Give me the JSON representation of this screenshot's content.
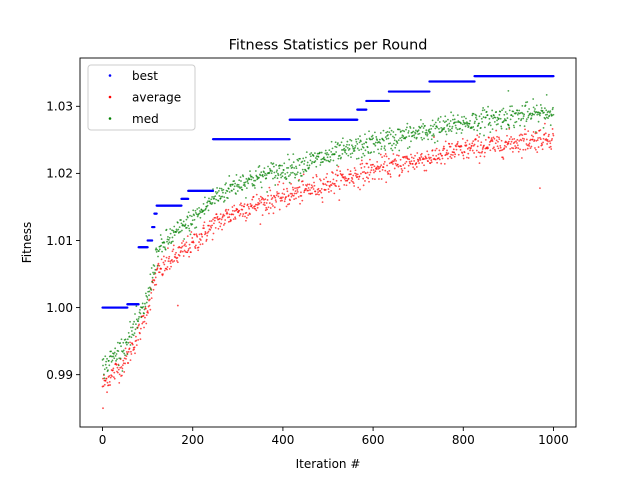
{
  "chart_data": {
    "type": "scatter",
    "title": "Fitness Statistics per Round",
    "xlabel": "Iteration #",
    "ylabel": "Fitness",
    "xlim": [
      -50,
      1050
    ],
    "ylim": [
      0.9822,
      1.0372
    ],
    "x_ticks": [
      0,
      200,
      400,
      600,
      800,
      1000
    ],
    "x_tick_labels": [
      "0",
      "200",
      "400",
      "600",
      "800",
      "1000"
    ],
    "y_ticks": [
      0.99,
      1.0,
      1.01,
      1.02,
      1.03
    ],
    "y_tick_labels": [
      "0.99",
      "1.00",
      "1.01",
      "1.02",
      "1.03"
    ],
    "grid": false,
    "legend_position": "upper-left",
    "series": [
      {
        "name": "best",
        "color": "#0000ff",
        "marker": "dot",
        "steps": [
          {
            "x_start": 0,
            "x_end": 55,
            "y": 1.0
          },
          {
            "x_start": 55,
            "x_end": 80,
            "y": 1.0005
          },
          {
            "x_start": 80,
            "x_end": 100,
            "y": 1.009
          },
          {
            "x_start": 100,
            "x_end": 110,
            "y": 1.01
          },
          {
            "x_start": 110,
            "x_end": 115,
            "y": 1.012
          },
          {
            "x_start": 115,
            "x_end": 120,
            "y": 1.014
          },
          {
            "x_start": 120,
            "x_end": 175,
            "y": 1.0152
          },
          {
            "x_start": 175,
            "x_end": 190,
            "y": 1.0162
          },
          {
            "x_start": 190,
            "x_end": 245,
            "y": 1.0174
          },
          {
            "x_start": 245,
            "x_end": 415,
            "y": 1.0251
          },
          {
            "x_start": 415,
            "x_end": 565,
            "y": 1.028
          },
          {
            "x_start": 565,
            "x_end": 585,
            "y": 1.0295
          },
          {
            "x_start": 585,
            "x_end": 635,
            "y": 1.0308
          },
          {
            "x_start": 635,
            "x_end": 725,
            "y": 1.0322
          },
          {
            "x_start": 725,
            "x_end": 825,
            "y": 1.0337
          },
          {
            "x_start": 825,
            "x_end": 1000,
            "y": 1.0345
          }
        ]
      },
      {
        "name": "average",
        "color": "#ff0000",
        "marker": "dot",
        "trend": [
          {
            "x": 0,
            "y": 0.9885
          },
          {
            "x": 50,
            "y": 0.992
          },
          {
            "x": 80,
            "y": 0.996
          },
          {
            "x": 100,
            "y": 1.0
          },
          {
            "x": 120,
            "y": 1.005
          },
          {
            "x": 150,
            "y": 1.007
          },
          {
            "x": 200,
            "y": 1.0095
          },
          {
            "x": 250,
            "y": 1.0125
          },
          {
            "x": 300,
            "y": 1.0145
          },
          {
            "x": 400,
            "y": 1.0165
          },
          {
            "x": 500,
            "y": 1.0185
          },
          {
            "x": 600,
            "y": 1.0205
          },
          {
            "x": 700,
            "y": 1.022
          },
          {
            "x": 800,
            "y": 1.0235
          },
          {
            "x": 900,
            "y": 1.0245
          },
          {
            "x": 1000,
            "y": 1.0255
          }
        ],
        "spread": 0.0016,
        "outliers": [
          {
            "x": 1,
            "y": 0.985
          },
          {
            "x": 167,
            "y": 1.0003
          },
          {
            "x": 970,
            "y": 1.0178
          }
        ]
      },
      {
        "name": "med",
        "color": "#008000",
        "marker": "dot",
        "trend": [
          {
            "x": 0,
            "y": 0.991
          },
          {
            "x": 50,
            "y": 0.9945
          },
          {
            "x": 80,
            "y": 0.998
          },
          {
            "x": 100,
            "y": 1.0015
          },
          {
            "x": 120,
            "y": 1.008
          },
          {
            "x": 150,
            "y": 1.0105
          },
          {
            "x": 200,
            "y": 1.013
          },
          {
            "x": 250,
            "y": 1.0165
          },
          {
            "x": 300,
            "y": 1.0185
          },
          {
            "x": 400,
            "y": 1.0205
          },
          {
            "x": 500,
            "y": 1.0225
          },
          {
            "x": 600,
            "y": 1.0245
          },
          {
            "x": 700,
            "y": 1.026
          },
          {
            "x": 800,
            "y": 1.0275
          },
          {
            "x": 900,
            "y": 1.0285
          },
          {
            "x": 1000,
            "y": 1.029
          }
        ],
        "spread": 0.0016,
        "outliers": [
          {
            "x": 900,
            "y": 1.0323
          },
          {
            "x": 985,
            "y": 1.0317
          }
        ]
      }
    ]
  }
}
